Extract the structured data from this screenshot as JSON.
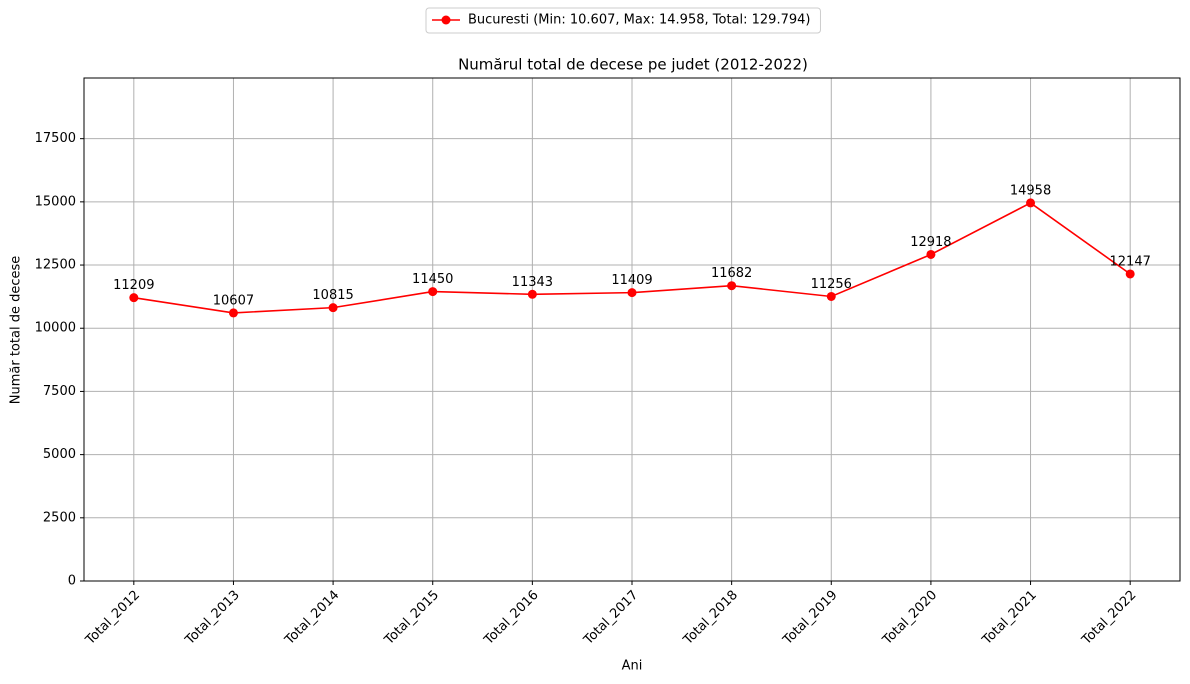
{
  "chart_data": {
    "type": "line",
    "title": "Numărul total de decese pe judet (2012-2022)",
    "x_label": "Ani",
    "y_label": "Număr total de decese",
    "categories": [
      "Total_2012",
      "Total_2013",
      "Total_2014",
      "Total_2015",
      "Total_2016",
      "Total_2017",
      "Total_2018",
      "Total_2019",
      "Total_2020",
      "Total_2021",
      "Total_2022"
    ],
    "series": [
      {
        "name": "Bucuresti (Min: 10.607, Max: 14.958, Total: 129.794)",
        "color": "#ff0000",
        "values": [
          11209,
          10607,
          10815,
          11450,
          11343,
          11409,
          11682,
          11256,
          12918,
          14958,
          12147
        ]
      }
    ],
    "ylim": [
      0,
      19900
    ],
    "yticks": [
      0,
      2500,
      5000,
      7500,
      10000,
      12500,
      15000,
      17500
    ],
    "grid": true,
    "legend": "top"
  }
}
